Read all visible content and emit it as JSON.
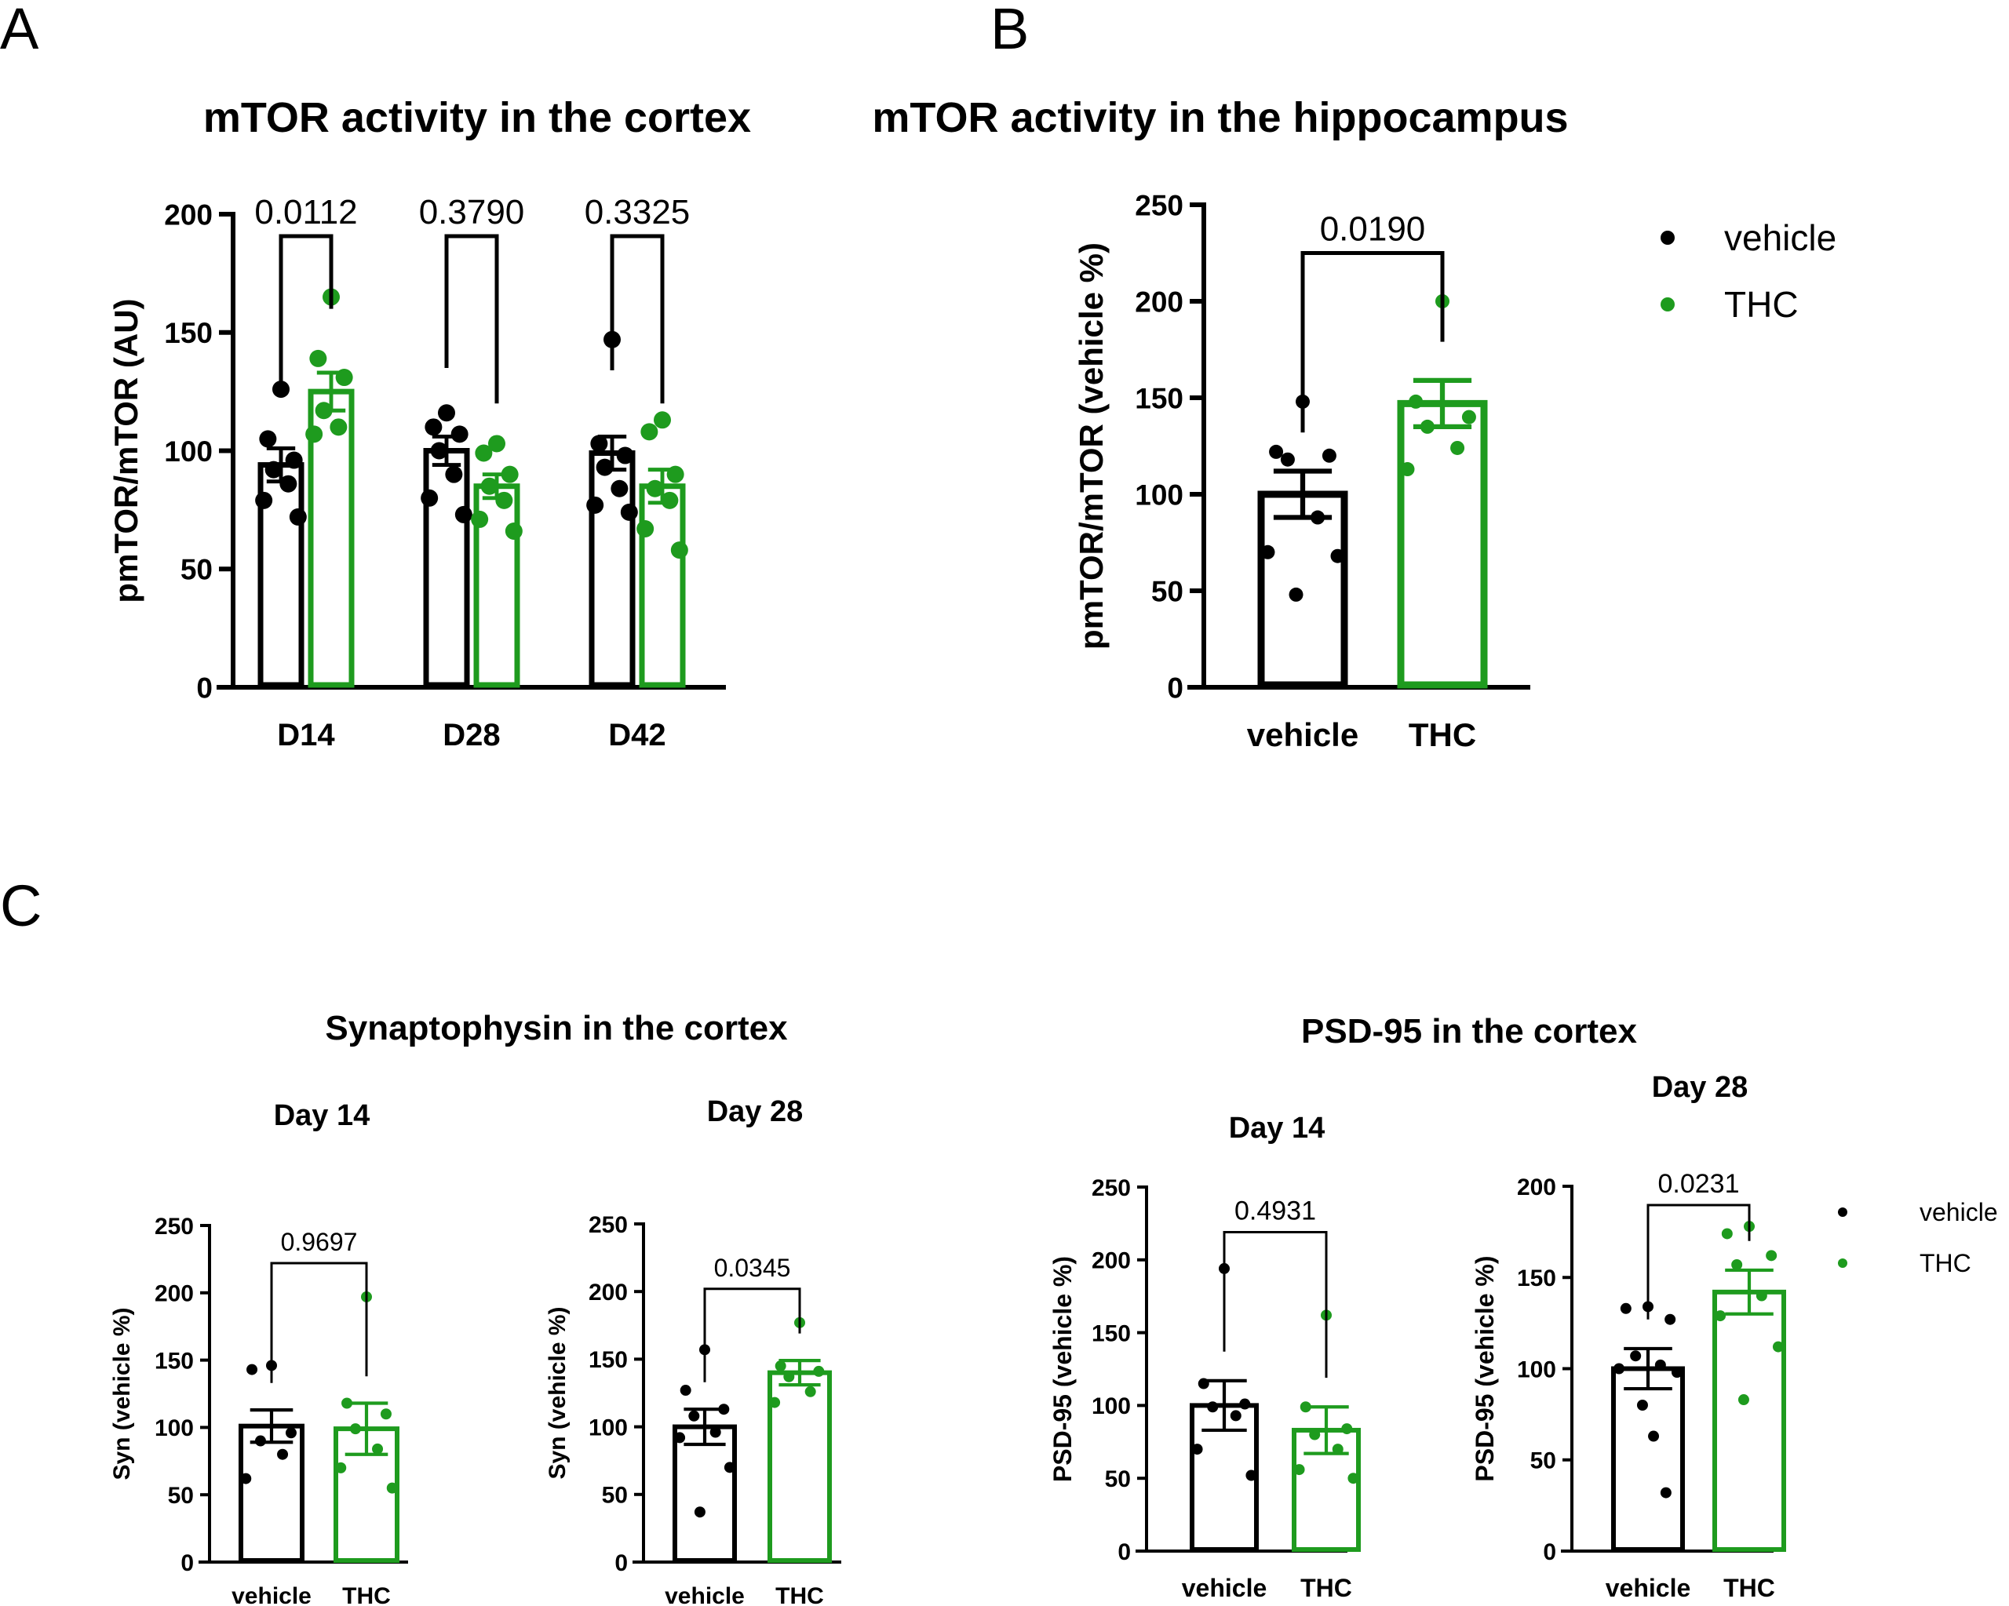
{
  "figure": {
    "panel_labels": [
      "A",
      "B",
      "C"
    ],
    "colors": {
      "vehicle": "#000000",
      "thc": "#1e9b1e"
    },
    "section_titles": {
      "syn": "Synaptophysin in the cortex",
      "psd": "PSD-95 in the cortex"
    }
  },
  "chart_data": [
    {
      "id": "A",
      "type": "bar",
      "title": "mTOR activity in the cortex",
      "ylabel": "pmTOR/mTOR (AU)",
      "xlabel": "",
      "ylim": [
        0,
        200
      ],
      "yticks": [
        0,
        50,
        100,
        150,
        200
      ],
      "categories": [
        "D14",
        "D28",
        "D42"
      ],
      "series": [
        {
          "key": "vehicle",
          "values": [
            94,
            100,
            99
          ],
          "sem": [
            7,
            6,
            7
          ],
          "points": [
            [
              126,
              105,
              96,
              92,
              86,
              79,
              72
            ],
            [
              116,
              110,
              107,
              100,
              90,
              80,
              73
            ],
            [
              147,
              103,
              98,
              93,
              84,
              77,
              74
            ]
          ]
        },
        {
          "key": "THC",
          "values": [
            125,
            85,
            85
          ],
          "sem": [
            8,
            5,
            7
          ],
          "points": [
            [
              165,
              139,
              131,
              117,
              110,
              107
            ],
            [
              103,
              99,
              90,
              85,
              79,
              71,
              66
            ],
            [
              113,
              108,
              90,
              84,
              79,
              67,
              58
            ]
          ]
        }
      ],
      "comparisons": [
        {
          "group": "D14",
          "p": "0.0112"
        },
        {
          "group": "D28",
          "p": "0.3790"
        },
        {
          "group": "D42",
          "p": "0.3325"
        }
      ]
    },
    {
      "id": "B",
      "type": "bar",
      "title": "mTOR activity in the hippocampus",
      "ylabel": "pmTOR/mTOR (vehicle %)",
      "xlabel": "",
      "ylim": [
        0,
        250
      ],
      "yticks": [
        0,
        50,
        100,
        150,
        200,
        250
      ],
      "categories": [
        "vehicle",
        "THC"
      ],
      "values": [
        100,
        147
      ],
      "sem": [
        12,
        12
      ],
      "points": [
        [
          148,
          122,
          120,
          118,
          88,
          70,
          68,
          48
        ],
        [
          200,
          148,
          140,
          135,
          124,
          113
        ]
      ],
      "comparison": {
        "p": "0.0190"
      },
      "legend": [
        "vehicle",
        "THC"
      ],
      "legend_position": "top-right"
    },
    {
      "id": "C-syn-day14",
      "type": "bar",
      "title": "Day 14",
      "ylabel": "Syn (vehicle %)",
      "ylim": [
        0,
        250
      ],
      "yticks": [
        0,
        50,
        100,
        150,
        200,
        250
      ],
      "categories": [
        "vehicle",
        "THC"
      ],
      "values": [
        101,
        99
      ],
      "sem": [
        12,
        19
      ],
      "points": [
        [
          146,
          143,
          96,
          90,
          80,
          62
        ],
        [
          197,
          118,
          110,
          99,
          84,
          70,
          55
        ]
      ],
      "comparison": {
        "p": "0.9697"
      }
    },
    {
      "id": "C-syn-day28",
      "type": "bar",
      "title": "Day 28",
      "ylabel": "Syn (vehicle %)",
      "ylim": [
        0,
        250
      ],
      "yticks": [
        0,
        50,
        100,
        150,
        200,
        250
      ],
      "categories": [
        "vehicle",
        "THC"
      ],
      "values": [
        100,
        140
      ],
      "sem": [
        13,
        9
      ],
      "points": [
        [
          157,
          127,
          113,
          108,
          96,
          92,
          70,
          37
        ],
        [
          177,
          145,
          141,
          137,
          126,
          118
        ]
      ],
      "comparison": {
        "p": "0.0345"
      }
    },
    {
      "id": "C-psd-day14",
      "type": "bar",
      "title": "Day 14",
      "ylabel": "PSD-95 (vehicle %)",
      "ylim": [
        0,
        250
      ],
      "yticks": [
        0,
        50,
        100,
        150,
        200,
        250
      ],
      "categories": [
        "vehicle",
        "THC"
      ],
      "values": [
        100,
        83
      ],
      "sem": [
        17,
        16
      ],
      "points": [
        [
          194,
          115,
          101,
          99,
          93,
          70,
          52
        ],
        [
          162,
          99,
          84,
          80,
          70,
          56,
          50
        ]
      ],
      "comparison": {
        "p": "0.4931"
      }
    },
    {
      "id": "C-psd-day28",
      "type": "bar",
      "title": "Day 28",
      "ylabel": "PSD-95 (vehicle %)",
      "ylim": [
        0,
        200
      ],
      "yticks": [
        0,
        50,
        100,
        150,
        200
      ],
      "categories": [
        "vehicle",
        "THC"
      ],
      "values": [
        100,
        142
      ],
      "sem": [
        11,
        12
      ],
      "points": [
        [
          134,
          133,
          127,
          107,
          102,
          100,
          98,
          80,
          63,
          32
        ],
        [
          178,
          174,
          162,
          157,
          140,
          129,
          112,
          83
        ]
      ],
      "comparison": {
        "p": "0.0231"
      },
      "legend": [
        "vehicle",
        "THC"
      ],
      "legend_position": "top-right"
    }
  ]
}
